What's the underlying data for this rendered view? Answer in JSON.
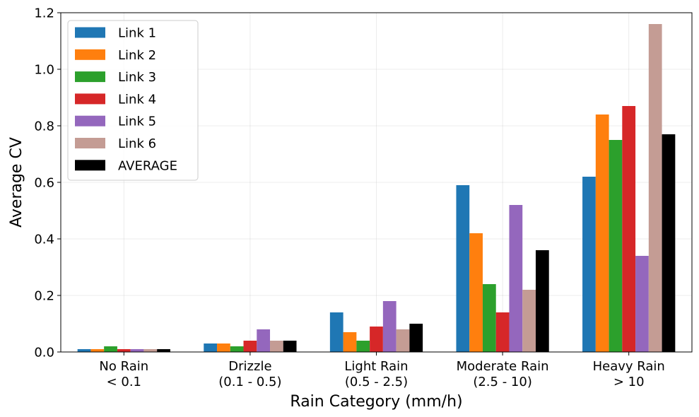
{
  "chart_data": {
    "type": "bar",
    "title": "",
    "xlabel": "Rain Category (mm/h)",
    "ylabel": "Average CV",
    "ylim": [
      0,
      1.2
    ],
    "yticks": [
      "0.0",
      "0.2",
      "0.4",
      "0.6",
      "0.8",
      "1.0",
      "1.2"
    ],
    "grid": true,
    "legend_position": "top-left",
    "categories": [
      [
        "No Rain",
        "< 0.1"
      ],
      [
        "Drizzle",
        "(0.1 - 0.5)"
      ],
      [
        "Light Rain",
        "(0.5 - 2.5)"
      ],
      [
        "Moderate Rain",
        "(2.5 - 10)"
      ],
      [
        "Heavy Rain",
        "> 10"
      ]
    ],
    "series": [
      {
        "name": "Link 1",
        "color": "#1f77b4",
        "values": [
          0.01,
          0.03,
          0.14,
          0.59,
          0.62
        ]
      },
      {
        "name": "Link 2",
        "color": "#ff7f0e",
        "values": [
          0.01,
          0.03,
          0.07,
          0.42,
          0.84
        ]
      },
      {
        "name": "Link 3",
        "color": "#2ca02c",
        "values": [
          0.02,
          0.02,
          0.04,
          0.24,
          0.75
        ]
      },
      {
        "name": "Link 4",
        "color": "#d62728",
        "values": [
          0.01,
          0.04,
          0.09,
          0.14,
          0.87
        ]
      },
      {
        "name": "Link 5",
        "color": "#9467bd",
        "values": [
          0.01,
          0.08,
          0.18,
          0.52,
          0.34
        ]
      },
      {
        "name": "Link 6",
        "color": "#c49c94",
        "values": [
          0.01,
          0.04,
          0.08,
          0.22,
          1.16
        ]
      },
      {
        "name": "AVERAGE",
        "color": "#000000",
        "values": [
          0.01,
          0.04,
          0.1,
          0.36,
          0.77
        ]
      }
    ]
  }
}
